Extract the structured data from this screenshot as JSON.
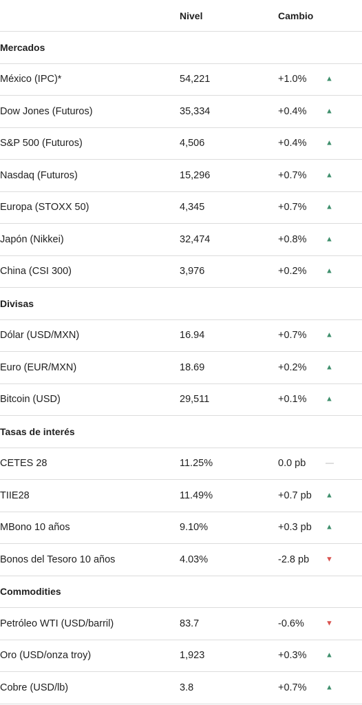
{
  "header": {
    "name": "",
    "level": "Nivel",
    "change": "Cambio"
  },
  "sections": [
    {
      "title": "Mercados",
      "rows": [
        {
          "name": "México (IPC)*",
          "level": "54,221",
          "change": "+1.0%",
          "dir": "up"
        },
        {
          "name": "Dow Jones (Futuros)",
          "level": "35,334",
          "change": "+0.4%",
          "dir": "up"
        },
        {
          "name": "S&P 500 (Futuros)",
          "level": "4,506",
          "change": "+0.4%",
          "dir": "up"
        },
        {
          "name": "Nasdaq (Futuros)",
          "level": "15,296",
          "change": "+0.7%",
          "dir": "up"
        },
        {
          "name": "Europa (STOXX 50)",
          "level": "4,345",
          "change": "+0.7%",
          "dir": "up"
        },
        {
          "name": "Japón (Nikkei)",
          "level": "32,474",
          "change": "+0.8%",
          "dir": "up"
        },
        {
          "name": "China (CSI 300)",
          "level": "3,976",
          "change": "+0.2%",
          "dir": "up"
        }
      ]
    },
    {
      "title": "Divisas",
      "rows": [
        {
          "name": "Dólar (USD/MXN)",
          "level": "16.94",
          "change": "+0.7%",
          "dir": "up"
        },
        {
          "name": "Euro (EUR/MXN)",
          "level": "18.69",
          "change": "+0.2%",
          "dir": "up"
        },
        {
          "name": "Bitcoin (USD)",
          "level": "29,511",
          "change": "+0.1%",
          "dir": "up"
        }
      ]
    },
    {
      "title": "Tasas de interés",
      "rows": [
        {
          "name": "CETES 28",
          "level": "11.25%",
          "change": "0.0 pb",
          "dir": "flat"
        },
        {
          "name": "TIIE28",
          "level": "11.49%",
          "change": "+0.7 pb",
          "dir": "up"
        },
        {
          "name": "MBono 10 años",
          "level": "9.10%",
          "change": "+0.3 pb",
          "dir": "up"
        },
        {
          "name": "Bonos del Tesoro 10 años",
          "level": "4.03%",
          "change": "-2.8 pb",
          "dir": "down"
        }
      ]
    },
    {
      "title": "Commodities",
      "rows": [
        {
          "name": "Petróleo WTI (USD/barril)",
          "level": "83.7",
          "change": "-0.6%",
          "dir": "down"
        },
        {
          "name": "Oro (USD/onza troy)",
          "level": "1,923",
          "change": "+0.3%",
          "dir": "up"
        },
        {
          "name": "Cobre (USD/lb)",
          "level": "3.8",
          "change": "+0.7%",
          "dir": "up"
        }
      ]
    }
  ],
  "indicator_colors": {
    "up": "#3f8f6c",
    "down": "#d9534f",
    "flat": "#bdbdbd"
  },
  "indicator_icons": {
    "up": "triangle-up-icon",
    "down": "triangle-down-icon",
    "flat": "dash-icon"
  }
}
